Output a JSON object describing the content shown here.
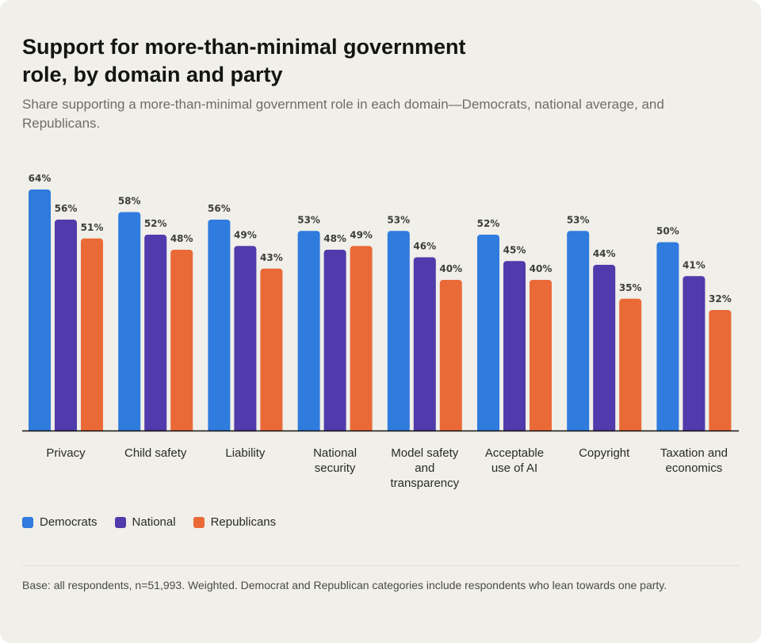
{
  "title": "Support for more-than-minimal government role, by domain and party",
  "subtitle": "Share supporting a more-than-minimal government role in each domain—Democrats, national average, and Republicans.",
  "footnote": "Base: all respondents, n=51,993. Weighted. Democrat and Republican categories include respondents who lean towards one party.",
  "chart_data": {
    "type": "bar",
    "categories": [
      "Privacy",
      "Child safety",
      "Liability",
      "National security",
      "Model safety and transparency",
      "Acceptable use of AI",
      "Copyright",
      "Taxation and economics"
    ],
    "category_lines": [
      [
        "Privacy"
      ],
      [
        "Child safety"
      ],
      [
        "Liability"
      ],
      [
        "National",
        "security"
      ],
      [
        "Model safety",
        "and",
        "transparency"
      ],
      [
        "Acceptable",
        "use of AI"
      ],
      [
        "Copyright"
      ],
      [
        "Taxation and",
        "economics"
      ]
    ],
    "series": [
      {
        "name": "Democrats",
        "color": "#2f7bde",
        "values": [
          64,
          58,
          56,
          53,
          53,
          52,
          53,
          50
        ]
      },
      {
        "name": "National",
        "color": "#4f3bab",
        "values": [
          56,
          52,
          49,
          48,
          46,
          45,
          44,
          41
        ]
      },
      {
        "name": "Republicans",
        "color": "#ea6a37",
        "values": [
          51,
          48,
          43,
          49,
          40,
          40,
          35,
          32
        ]
      }
    ],
    "value_suffix": "%",
    "ylim": [
      0,
      68
    ],
    "grid": false,
    "legend_position": "bottom-left",
    "xlabel": "",
    "ylabel": ""
  }
}
